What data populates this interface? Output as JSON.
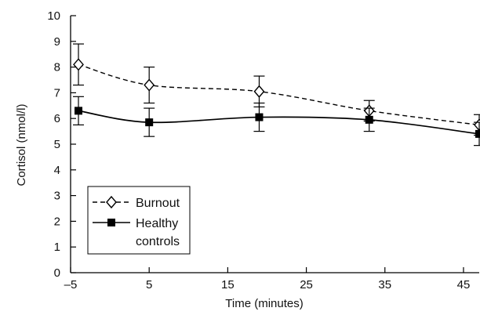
{
  "chart_data": {
    "type": "line",
    "xlabel": "Time (minutes)",
    "ylabel": "Cortisol (nmol/l)",
    "xlim": [
      -5,
      47
    ],
    "ylim": [
      0,
      10
    ],
    "xticks": [
      -5,
      5,
      15,
      25,
      35,
      45
    ],
    "yticks": [
      0,
      1,
      2,
      3,
      4,
      5,
      6,
      7,
      8,
      9,
      10
    ],
    "xtick_labels": [
      "–5",
      "5",
      "15",
      "25",
      "35",
      "45"
    ],
    "ytick_labels": [
      "0",
      "1",
      "2",
      "3",
      "4",
      "5",
      "6",
      "7",
      "8",
      "9",
      "10"
    ],
    "grid": false,
    "legend_position": "bottom-left",
    "series": [
      {
        "name": "Burnout",
        "marker": "open-diamond",
        "line_style": "dashed",
        "color": "#000000",
        "x": [
          -4,
          5,
          19,
          33,
          47
        ],
        "y": [
          8.1,
          7.3,
          7.05,
          6.3,
          5.75
        ],
        "err": [
          0.8,
          0.7,
          0.6,
          0.4,
          0.4
        ]
      },
      {
        "name": "Healthy controls",
        "legend_lines": [
          "Healthy",
          "controls"
        ],
        "marker": "filled-square",
        "line_style": "solid",
        "color": "#000000",
        "x": [
          -4,
          5,
          19,
          33,
          47
        ],
        "y": [
          6.3,
          5.85,
          6.05,
          5.95,
          5.4
        ],
        "err": [
          0.55,
          0.55,
          0.55,
          0.45,
          0.45
        ]
      }
    ]
  }
}
